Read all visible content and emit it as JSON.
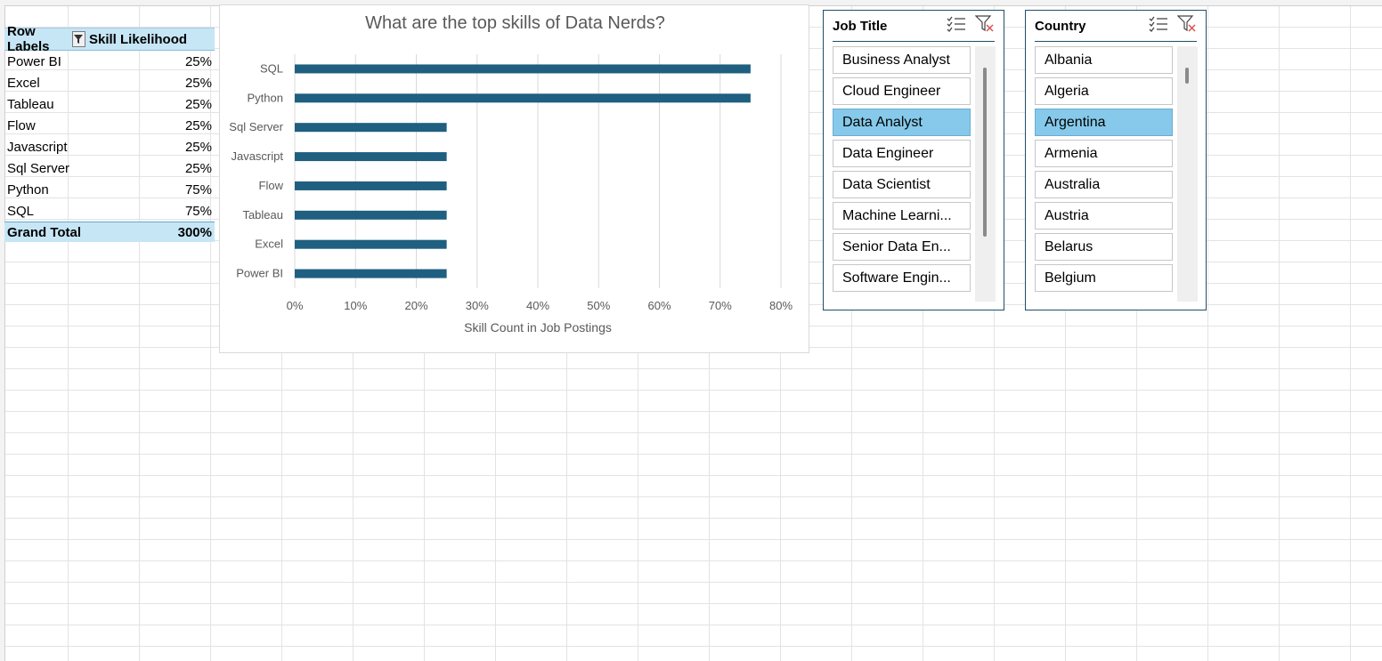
{
  "pivot": {
    "header_row_labels": "Row Labels",
    "header_value": "Skill Likelihood",
    "rows": [
      {
        "label": "Power BI",
        "value": "25%"
      },
      {
        "label": "Excel",
        "value": "25%"
      },
      {
        "label": "Tableau",
        "value": "25%"
      },
      {
        "label": "Flow",
        "value": "25%"
      },
      {
        "label": "Javascript",
        "value": "25%"
      },
      {
        "label": "Sql Server",
        "value": "25%"
      },
      {
        "label": "Python",
        "value": "75%"
      },
      {
        "label": "SQL",
        "value": "75%"
      }
    ],
    "total_label": "Grand Total",
    "total_value": "300%"
  },
  "chart_data": {
    "type": "bar",
    "orientation": "horizontal",
    "title": "What are the top skills of Data Nerds?",
    "xlabel": "Skill Count in Job Postings",
    "ylabel": "",
    "categories": [
      "SQL",
      "Python",
      "Sql Server",
      "Javascript",
      "Flow",
      "Tableau",
      "Excel",
      "Power BI"
    ],
    "values": [
      0.75,
      0.75,
      0.25,
      0.25,
      0.25,
      0.25,
      0.25,
      0.25
    ],
    "xlim": [
      0,
      0.8
    ],
    "x_ticks": [
      "0%",
      "10%",
      "20%",
      "30%",
      "40%",
      "50%",
      "60%",
      "70%",
      "80%"
    ],
    "grid": "vertical",
    "bar_color": "#1f5f80"
  },
  "slicer_job": {
    "title": "Job Title",
    "items": [
      "Business Analyst",
      "Cloud Engineer",
      "Data Analyst",
      "Data Engineer",
      "Data Scientist",
      "Machine Learni...",
      "Senior Data En...",
      "Software Engin..."
    ],
    "selected": "Data Analyst"
  },
  "slicer_country": {
    "title": "Country",
    "items": [
      "Albania",
      "Algeria",
      "Argentina",
      "Armenia",
      "Australia",
      "Austria",
      "Belarus",
      "Belgium"
    ],
    "selected": "Argentina"
  },
  "colors": {
    "pivot_header": "#c6e6f5",
    "slicer_selected": "#86c9ea",
    "slicer_border": "#1f4e6b"
  }
}
